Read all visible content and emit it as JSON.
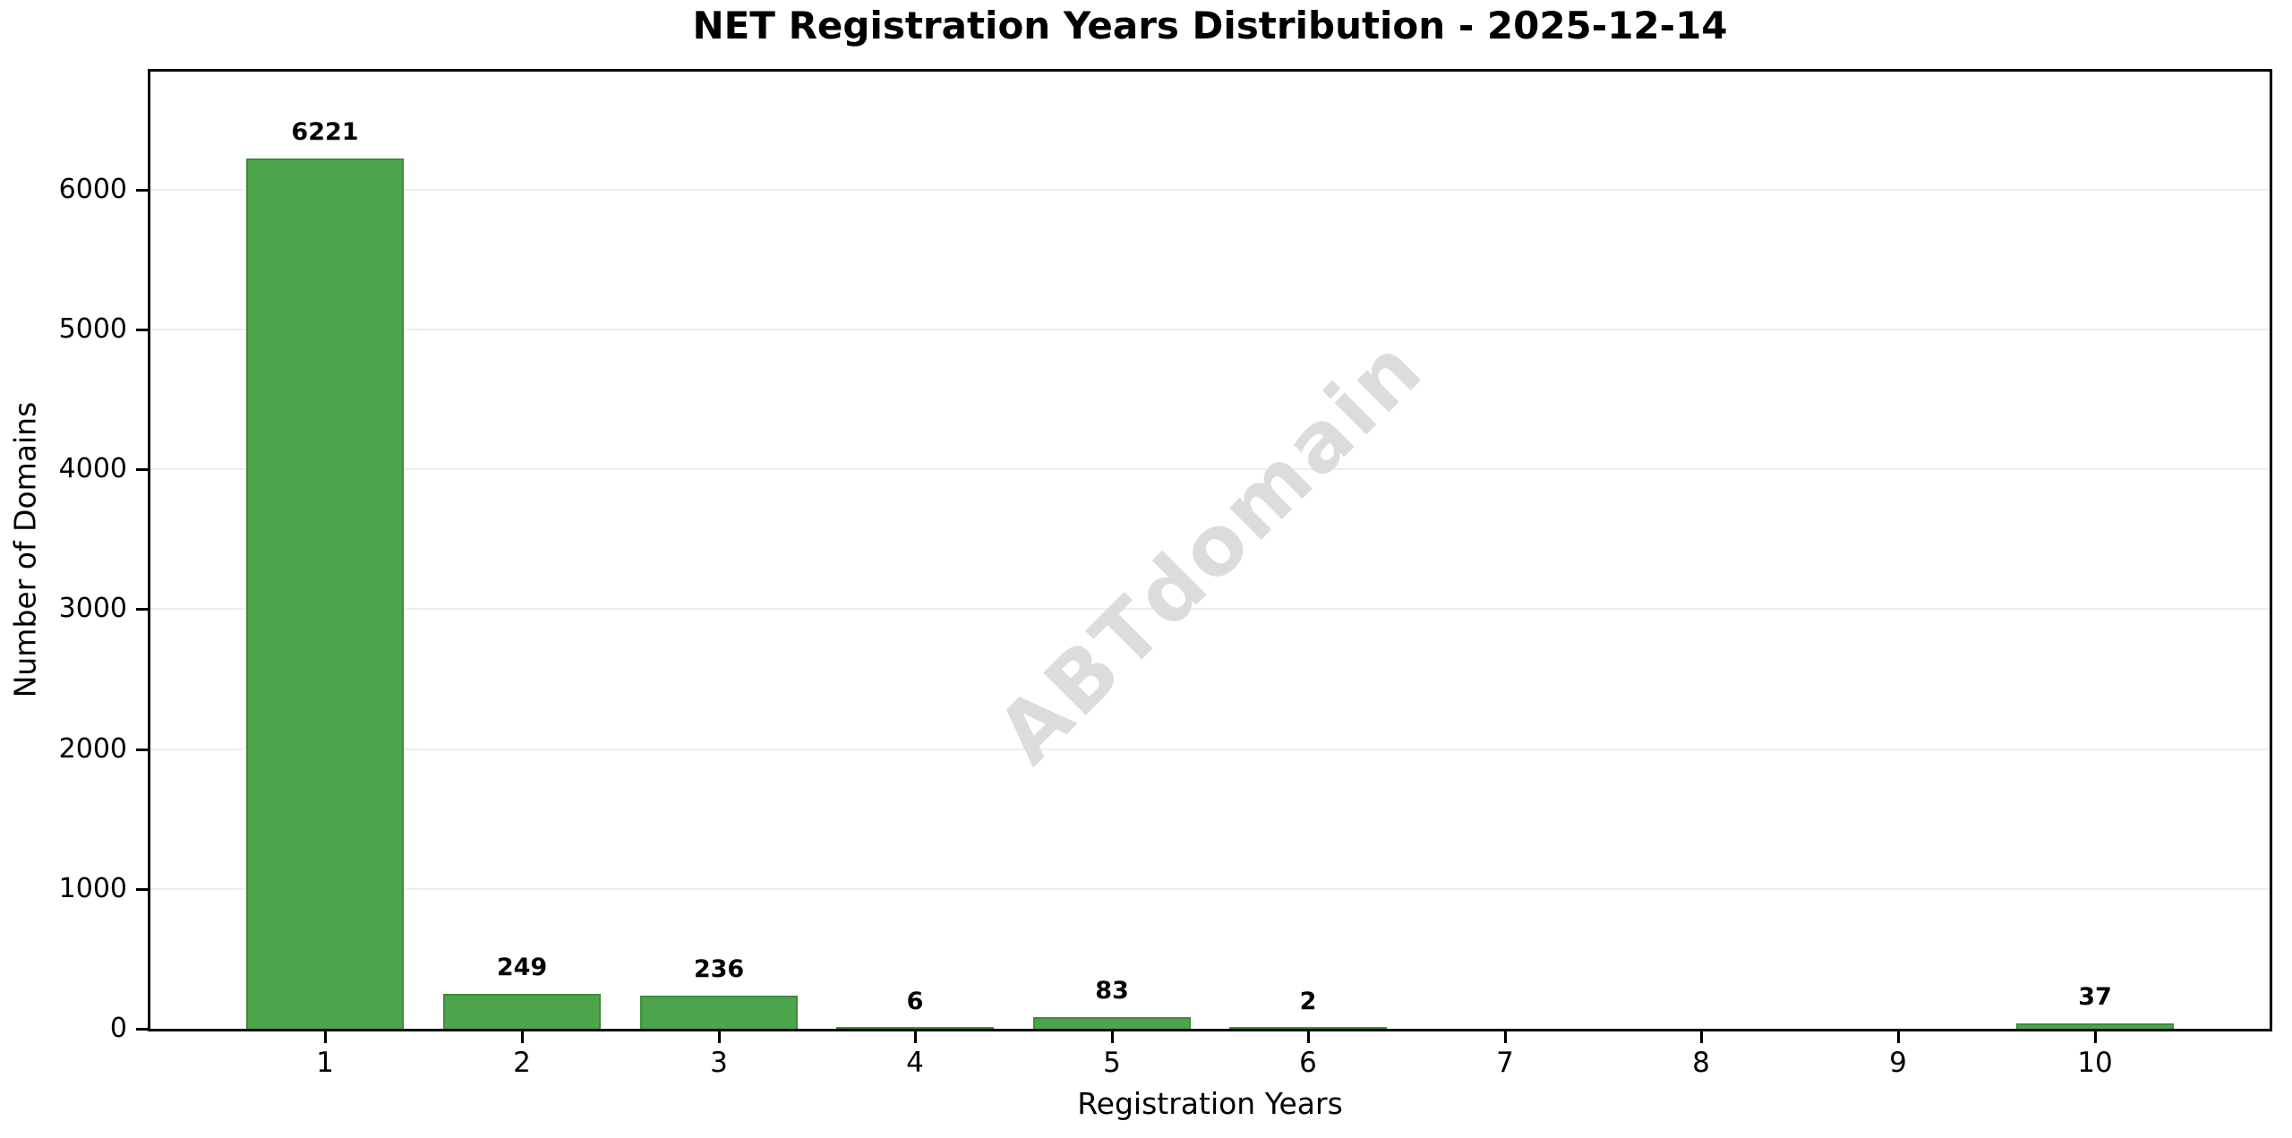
{
  "watermark": "ABTdomain",
  "chart_data": {
    "type": "bar",
    "title": "NET Registration Years Distribution - 2025-12-14",
    "xlabel": "Registration Years",
    "ylabel": "Number of Domains",
    "categories": [
      1,
      2,
      3,
      4,
      5,
      6,
      7,
      8,
      9,
      10
    ],
    "values": [
      6221,
      249,
      236,
      6,
      83,
      2,
      0,
      0,
      0,
      37
    ],
    "value_labels": [
      "6221",
      "249",
      "236",
      "6",
      "83",
      "2",
      "",
      "",
      "",
      "37"
    ],
    "yticks": [
      0,
      1000,
      2000,
      3000,
      4000,
      5000,
      6000
    ],
    "ylim": [
      0,
      6843
    ],
    "xlim": [
      0.11,
      10.89
    ],
    "bar_width": 0.8,
    "grid": "horizontal",
    "legend": "none",
    "colors": {
      "bar_fill": "#4CA54C",
      "bar_edge": "#3D8B3D",
      "grid": "#EDEDED",
      "axis": "#000000",
      "text": "#000000",
      "watermark": "#DCDCDC",
      "background": "#FFFFFF"
    }
  }
}
